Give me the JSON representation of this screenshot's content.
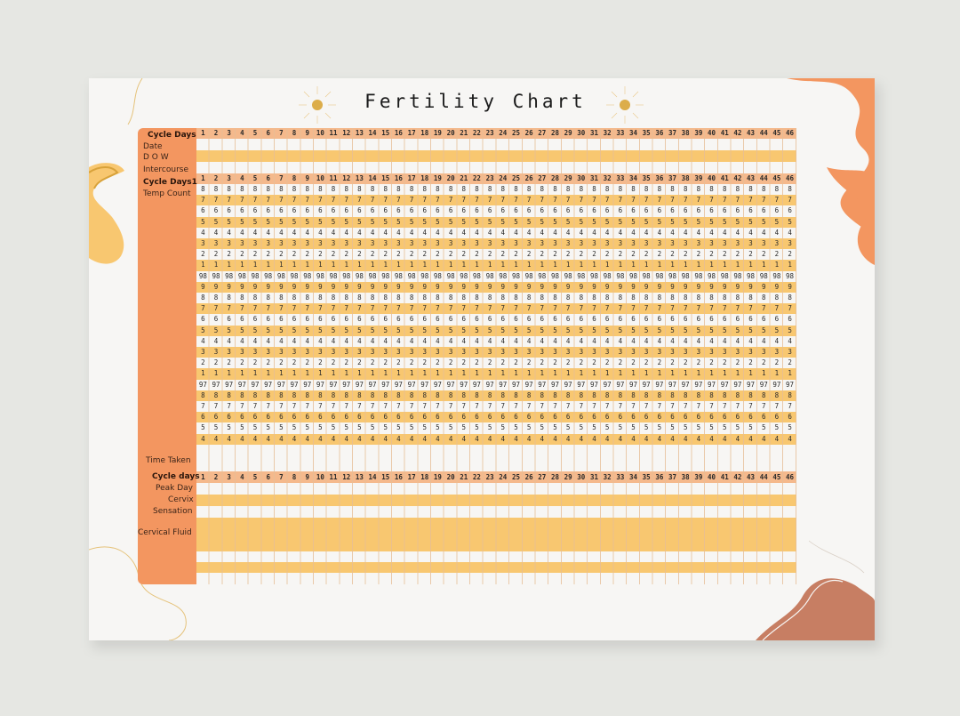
{
  "title": "Fertility Chart",
  "colors": {
    "orange": "#f39660",
    "yellow": "#f8c770",
    "peach": "#f5b98c",
    "terracotta": "#c77e63",
    "paper": "#f7f6f4"
  },
  "icons": [
    "sun-icon"
  ],
  "labels": {
    "cycle_days": "Cycle Days",
    "date": "Date",
    "dow": "D O W",
    "intercourse": "Intercourse",
    "cycle_days1": "Cycle Days1",
    "temp_count": "Temp Count",
    "time_taken": "Time Taken",
    "cycle_days_lower": "Cycle days",
    "peak_day": "Peak Day",
    "cervix": "Cervix",
    "sensation": "Sensation",
    "cervical_fluid": "Cervical Fluid"
  },
  "day_count": 46,
  "temp_rows": [
    "8",
    "7",
    "6",
    "5",
    "4",
    "3",
    "2",
    "1",
    "98",
    "9",
    "8",
    "7",
    "6",
    "5",
    "4",
    "3",
    "2",
    "1",
    "97",
    "8",
    "7",
    "6",
    "5",
    "4"
  ]
}
